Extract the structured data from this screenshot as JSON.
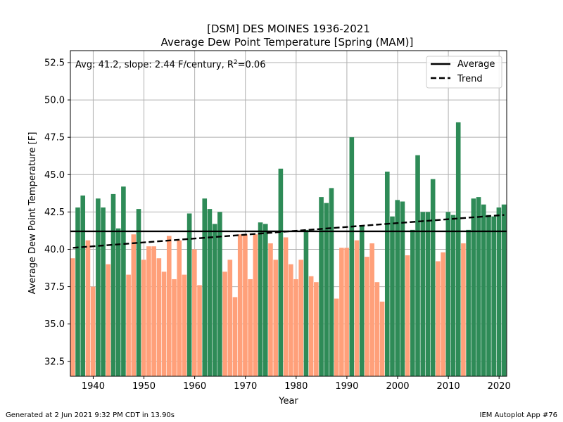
{
  "chart_data": {
    "type": "bar",
    "title_line1": "[DSM] DES MOINES 1936-2021",
    "title_line2": "Average Dew Point Temperature [Spring (MAM)]",
    "xlabel": "Year",
    "ylabel": "Average Dew Point Temperature [F]",
    "annotation_prefix": "Avg: 41.2, slope: 2.44 F/century, R",
    "annotation_sup": "2",
    "annotation_suffix": "=0.06",
    "xlim": [
      1935.5,
      2021.5
    ],
    "ylim": [
      31.5,
      53.3
    ],
    "x_ticks": [
      1940,
      1950,
      1960,
      1970,
      1980,
      1990,
      2000,
      2010,
      2020
    ],
    "y_ticks": [
      32.5,
      35.0,
      37.5,
      40.0,
      42.5,
      45.0,
      47.5,
      50.0,
      52.5
    ],
    "x_tick_labels": [
      "1940",
      "1950",
      "1960",
      "1970",
      "1980",
      "1990",
      "2000",
      "2010",
      "2020"
    ],
    "y_tick_labels": [
      "32.5",
      "35.0",
      "37.5",
      "40.0",
      "42.5",
      "45.0",
      "47.5",
      "50.0",
      "52.5"
    ],
    "grid": true,
    "legend_position": "top-right",
    "average": 41.2,
    "trend": {
      "start_year": 1936,
      "start_value": 40.1,
      "end_year": 2021,
      "end_value": 42.3
    },
    "colors": {
      "above": "#2e8b57",
      "below": "#ffa07a",
      "average_line": "#000000",
      "trend_line": "#000000"
    },
    "legend": [
      {
        "label": "Average",
        "style": "solid"
      },
      {
        "label": "Trend",
        "style": "dashed"
      }
    ],
    "years": [
      1936,
      1937,
      1938,
      1939,
      1940,
      1941,
      1942,
      1943,
      1944,
      1945,
      1946,
      1947,
      1948,
      1949,
      1950,
      1951,
      1952,
      1953,
      1954,
      1955,
      1956,
      1957,
      1958,
      1959,
      1960,
      1961,
      1962,
      1963,
      1964,
      1965,
      1966,
      1967,
      1968,
      1969,
      1970,
      1971,
      1972,
      1973,
      1974,
      1975,
      1976,
      1977,
      1978,
      1979,
      1980,
      1981,
      1982,
      1983,
      1984,
      1985,
      1986,
      1987,
      1988,
      1989,
      1990,
      1991,
      1992,
      1993,
      1994,
      1995,
      1996,
      1997,
      1998,
      1999,
      2000,
      2001,
      2002,
      2003,
      2004,
      2005,
      2006,
      2007,
      2008,
      2009,
      2010,
      2011,
      2012,
      2013,
      2014,
      2015,
      2016,
      2017,
      2018,
      2019,
      2020,
      2021
    ],
    "values": [
      39.4,
      42.8,
      43.6,
      40.6,
      37.5,
      43.4,
      42.8,
      39.0,
      43.7,
      41.4,
      44.2,
      38.3,
      41.0,
      42.7,
      39.3,
      40.2,
      40.2,
      39.4,
      38.5,
      40.9,
      38.0,
      40.6,
      38.3,
      42.4,
      40.0,
      37.6,
      43.4,
      42.7,
      41.7,
      42.5,
      38.5,
      39.3,
      36.8,
      41.0,
      41.0,
      38.0,
      41.0,
      41.8,
      41.7,
      40.4,
      39.3,
      45.4,
      40.8,
      39.0,
      38.0,
      39.3,
      41.3,
      38.2,
      37.8,
      43.5,
      43.1,
      44.1,
      36.7,
      40.1,
      40.1,
      47.5,
      40.6,
      41.6,
      39.5,
      40.4,
      37.8,
      36.5,
      45.2,
      42.2,
      43.3,
      43.2,
      39.6,
      41.3,
      46.3,
      42.5,
      42.5,
      44.7,
      39.2,
      39.8,
      42.5,
      42.3,
      48.5,
      40.4,
      41.3,
      43.4,
      43.5,
      43.0,
      42.3,
      42.2,
      42.8,
      43.0
    ]
  },
  "footer": {
    "left": "Generated at 2 Jun 2021 9:32 PM CDT in 13.90s",
    "right": "IEM Autoplot App #76"
  }
}
